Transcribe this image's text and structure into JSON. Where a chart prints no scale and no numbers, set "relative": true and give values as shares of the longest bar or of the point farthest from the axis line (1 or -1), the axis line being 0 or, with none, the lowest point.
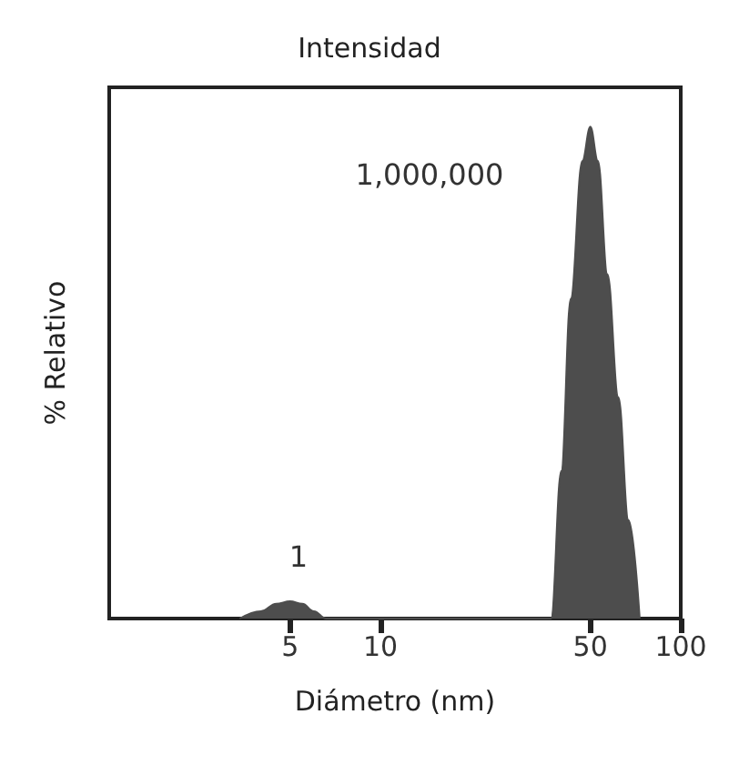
{
  "chart_data": {
    "type": "area",
    "title": "Intensidad",
    "xlabel": "Diámetro (nm)",
    "ylabel": "% Relativo",
    "relative": true,
    "log": "x",
    "grid": false,
    "marker": "none",
    "xlim": [
      1.25,
      100
    ],
    "xticks": [
      5,
      10,
      50,
      100
    ],
    "x": [
      3.4,
      4,
      4.5,
      5,
      5.5,
      6,
      6.6,
      37,
      40,
      43,
      47,
      50,
      53,
      57,
      62,
      67,
      73
    ],
    "series": [
      {
        "color": "#4d4d4d",
        "values": [
          0,
          0.015,
          0.03,
          0.035,
          0.03,
          0.015,
          0,
          0,
          0.3,
          0.65,
          0.93,
          1,
          0.93,
          0.7,
          0.45,
          0.2,
          0
        ]
      }
    ],
    "annotations": [
      "1",
      "1,000,000"
    ]
  }
}
